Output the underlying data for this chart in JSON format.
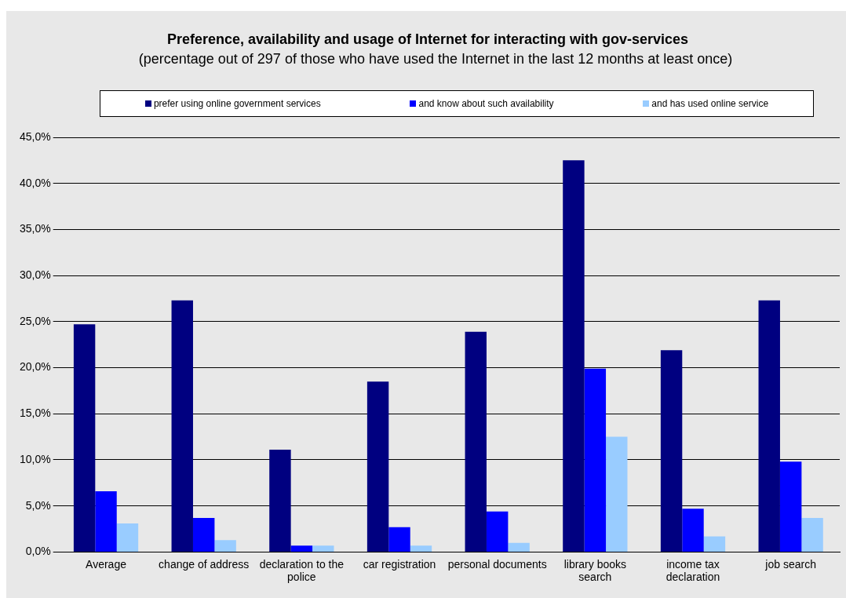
{
  "chart_data": {
    "type": "bar",
    "title": "Preference, availability and usage of Internet for interacting with gov-services",
    "subtitle": "(percentage out of 297 of those who have used the Internet in the last 12 months at least once)",
    "categories": [
      "Average",
      "change of address",
      "declaration to the police",
      "car registration",
      "personal documents",
      "library books search",
      "income tax declaration",
      "job search"
    ],
    "series": [
      {
        "name": "prefer using online government services",
        "color": "#000080",
        "values": [
          24.7,
          27.3,
          11.1,
          18.5,
          23.9,
          42.5,
          21.9,
          27.3
        ]
      },
      {
        "name": "and know about such availability",
        "color": "#0000ff",
        "values": [
          6.6,
          3.7,
          0.7,
          2.7,
          4.4,
          19.9,
          4.7,
          9.8
        ]
      },
      {
        "name": "and has used online service",
        "color": "#99ccff",
        "values": [
          3.1,
          1.3,
          0.7,
          0.7,
          1.0,
          12.5,
          1.7,
          3.7
        ]
      }
    ],
    "ylim": [
      0,
      45
    ],
    "yticks": [
      {
        "value": 0,
        "label": "0,0%"
      },
      {
        "value": 5,
        "label": "5,0%"
      },
      {
        "value": 10,
        "label": "10,0%"
      },
      {
        "value": 15,
        "label": "15,0%"
      },
      {
        "value": 20,
        "label": "20,0%"
      },
      {
        "value": 25,
        "label": "25,0%"
      },
      {
        "value": 30,
        "label": "30,0%"
      },
      {
        "value": 35,
        "label": "35,0%"
      },
      {
        "value": 40,
        "label": "40,0%"
      },
      {
        "value": 45,
        "label": "45,0%"
      }
    ],
    "grid": "y",
    "legend": "top"
  }
}
